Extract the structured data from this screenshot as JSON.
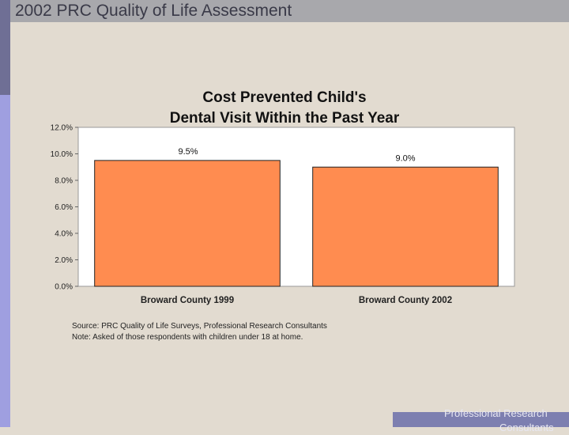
{
  "header": {
    "title": "2002 PRC Quality of Life Assessment"
  },
  "chart_data": {
    "type": "bar",
    "title_line1": "Cost Prevented Child's",
    "title_line2": "Dental Visit Within the Past Year",
    "categories": [
      "Broward County 1999",
      "Broward County 2002"
    ],
    "values": [
      9.5,
      9.0
    ],
    "value_labels": [
      "9.5%",
      "9.0%"
    ],
    "ylim": [
      0,
      12
    ],
    "yticks": [
      "0.0%",
      "2.0%",
      "4.0%",
      "6.0%",
      "8.0%",
      "10.0%",
      "12.0%"
    ],
    "bar_color": "#ff8c50",
    "grid": false
  },
  "source_note": {
    "source": "Source: PRC Quality of Life Surveys, Professional Research Consultants",
    "note": "Note:     Asked of those respondents with children under 18 at home."
  },
  "footer": {
    "line1": "Professional Research",
    "line2": "Consultants"
  }
}
